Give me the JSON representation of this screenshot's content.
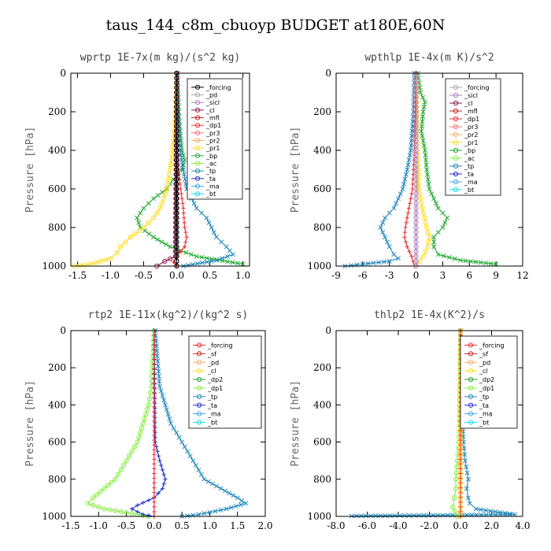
{
  "figure_title": "taus_144_c8m_cbuoyp  BUDGET at180E,60N",
  "chart_data": [
    {
      "type": "line",
      "title": "wprtp   1E-7x(m kg)/(s^2 kg)",
      "ylabel": "Pressure [hPa]",
      "xlabel": "",
      "xlim": [
        -1.6,
        1.1
      ],
      "ylim": [
        1000,
        0
      ],
      "xticks": [
        "-1.5",
        "-1.0",
        "-0.5",
        "0.0",
        "0.5",
        "1.0"
      ],
      "xtick_values": [
        -1.5,
        -1.0,
        -0.5,
        0.0,
        0.5,
        1.0
      ],
      "yticks": [
        "0",
        "200",
        "400",
        "600",
        "800",
        "1000"
      ],
      "legend": [
        "_forcing",
        "_pd",
        "_sicl",
        "_cl",
        "_mfl",
        "_dp1",
        "_pr3",
        "_pr2",
        "_pr1",
        "_bp",
        "_ac",
        "_tp",
        "_ta",
        "_ma",
        "_bt"
      ],
      "legend_colors": [
        "#000000",
        "#aaaaaa",
        "#b080c0",
        "#8b1a4a",
        "#cc2222",
        "#ee3333",
        "#ff7070",
        "#ffaa66",
        "#ffdd22",
        "#22aa33",
        "#88ee44",
        "#2288bb",
        "#2233cc",
        "#44aaee",
        "#11ddee"
      ],
      "grid": false,
      "legend_position": "top-right",
      "series": [
        {
          "color": "#22aa33",
          "marker": "x",
          "points": [
            [
              0.01,
              0
            ],
            [
              0.02,
              100
            ],
            [
              0.03,
              200
            ],
            [
              0.05,
              300
            ],
            [
              0.08,
              400
            ],
            [
              0.12,
              450
            ],
            [
              0.08,
              500
            ],
            [
              -0.05,
              550
            ],
            [
              -0.15,
              600
            ],
            [
              -0.35,
              650
            ],
            [
              -0.5,
              700
            ],
            [
              -0.6,
              750
            ],
            [
              -0.55,
              800
            ],
            [
              -0.35,
              850
            ],
            [
              -0.1,
              900
            ],
            [
              0.3,
              950
            ],
            [
              1.0,
              990
            ]
          ]
        },
        {
          "color": "#2288bb",
          "marker": "x",
          "points": [
            [
              0.01,
              0
            ],
            [
              0.02,
              200
            ],
            [
              0.05,
              400
            ],
            [
              0.1,
              500
            ],
            [
              0.15,
              600
            ],
            [
              0.3,
              700
            ],
            [
              0.45,
              750
            ],
            [
              0.6,
              850
            ],
            [
              0.75,
              900
            ],
            [
              0.85,
              940
            ],
            [
              0.6,
              970
            ],
            [
              0.1,
              1000
            ]
          ]
        },
        {
          "color": "#ffdd22",
          "marker": "o",
          "points": [
            [
              0.0,
              0
            ],
            [
              -0.02,
              200
            ],
            [
              -0.06,
              400
            ],
            [
              -0.1,
              500
            ],
            [
              -0.15,
              600
            ],
            [
              -0.25,
              700
            ],
            [
              -0.35,
              750
            ],
            [
              -0.5,
              800
            ],
            [
              -0.7,
              850
            ],
            [
              -0.85,
              900
            ],
            [
              -0.9,
              930
            ],
            [
              -1.0,
              960
            ],
            [
              -1.3,
              990
            ],
            [
              -1.55,
              1000
            ]
          ]
        },
        {
          "color": "#ee3333",
          "marker": "+",
          "points": [
            [
              0.0,
              0
            ],
            [
              0.0,
              300
            ],
            [
              0.03,
              500
            ],
            [
              0.06,
              600
            ],
            [
              0.1,
              700
            ],
            [
              0.12,
              800
            ],
            [
              0.15,
              850
            ],
            [
              0.12,
              900
            ],
            [
              0.0,
              950
            ],
            [
              -0.05,
              980
            ],
            [
              0.0,
              1000
            ]
          ]
        },
        {
          "color": "#8b1a4a",
          "marker": "o",
          "points": [
            [
              0.0,
              0
            ],
            [
              -0.02,
              950
            ],
            [
              -0.18,
              975
            ],
            [
              -0.3,
              1000
            ]
          ]
        },
        {
          "color": "#b080c0",
          "marker": "o",
          "points": [
            [
              0.0,
              0
            ],
            [
              0.0,
              1000
            ]
          ]
        },
        {
          "color": "#000000",
          "marker": "o",
          "points": [
            [
              0.0,
              0
            ],
            [
              0.0,
              1000
            ]
          ]
        }
      ]
    },
    {
      "type": "line",
      "title": "wpthlp   1E-4x(m K)/s^2",
      "ylabel": "Pressure [hPa]",
      "xlabel": "",
      "xlim": [
        -9,
        12
      ],
      "ylim": [
        1000,
        0
      ],
      "xticks": [
        "-9",
        "-6",
        "-3",
        "0",
        "3",
        "6",
        "9",
        "12"
      ],
      "xtick_values": [
        -9,
        -6,
        -3,
        0,
        3,
        6,
        9,
        12
      ],
      "yticks": [
        "0",
        "200",
        "400",
        "600",
        "800",
        "1000"
      ],
      "legend": [
        "_forcing",
        "_sicl",
        "_cl",
        "_mfl",
        "_dp1",
        "_pr3",
        "_pr2",
        "_pr1",
        "_bp",
        "_ac",
        "_tp",
        "_ta",
        "_ma",
        "_bt"
      ],
      "legend_colors": [
        "#aaaaaa",
        "#b080c0",
        "#8b1a4a",
        "#cc2222",
        "#ee3333",
        "#ff7070",
        "#ffaa66",
        "#ffdd22",
        "#22aa33",
        "#88ee44",
        "#2288bb",
        "#2233cc",
        "#44aaee",
        "#11ddee"
      ],
      "grid": false,
      "legend_position": "top-right",
      "series": [
        {
          "color": "#22aa33",
          "marker": "x",
          "points": [
            [
              0.2,
              0
            ],
            [
              0.5,
              100
            ],
            [
              1.0,
              150
            ],
            [
              0.8,
              200
            ],
            [
              0.6,
              300
            ],
            [
              1.0,
              400
            ],
            [
              1.2,
              500
            ],
            [
              1.5,
              600
            ],
            [
              2.5,
              700
            ],
            [
              3.5,
              750
            ],
            [
              3.0,
              800
            ],
            [
              2.0,
              850
            ],
            [
              2.0,
              900
            ],
            [
              2.5,
              940
            ],
            [
              5.0,
              970
            ],
            [
              9.0,
              990
            ]
          ]
        },
        {
          "color": "#2288bb",
          "marker": "x",
          "points": [
            [
              -0.2,
              0
            ],
            [
              -0.3,
              200
            ],
            [
              -0.6,
              400
            ],
            [
              -1.0,
              500
            ],
            [
              -1.5,
              600
            ],
            [
              -2.5,
              700
            ],
            [
              -3.5,
              750
            ],
            [
              -4.0,
              800
            ],
            [
              -3.5,
              850
            ],
            [
              -3.0,
              900
            ],
            [
              -2.5,
              940
            ],
            [
              -2.0,
              960
            ],
            [
              -3.0,
              975
            ],
            [
              -6.0,
              990
            ],
            [
              -8.0,
              1000
            ]
          ]
        },
        {
          "color": "#ffdd22",
          "marker": "o",
          "points": [
            [
              0.0,
              0
            ],
            [
              0.2,
              400
            ],
            [
              0.3,
              600
            ],
            [
              0.7,
              700
            ],
            [
              1.2,
              800
            ],
            [
              1.5,
              850
            ],
            [
              1.3,
              900
            ],
            [
              0.8,
              950
            ],
            [
              0.0,
              1000
            ]
          ]
        },
        {
          "color": "#ee3333",
          "marker": "+",
          "points": [
            [
              0.0,
              0
            ],
            [
              -0.2,
              400
            ],
            [
              -0.4,
              600
            ],
            [
              -0.8,
              700
            ],
            [
              -1.2,
              800
            ],
            [
              -1.3,
              850
            ],
            [
              -1.0,
              900
            ],
            [
              -0.5,
              950
            ],
            [
              -0.2,
              1000
            ]
          ]
        },
        {
          "color": "#b080c0",
          "marker": "o",
          "points": [
            [
              0.0,
              0
            ],
            [
              0.0,
              1000
            ]
          ]
        }
      ]
    },
    {
      "type": "line",
      "title": "rtp2   1E-11x(kg^2)/(kg^2 s)",
      "ylabel": "Pressure [hPa]",
      "xlabel": "",
      "xlim": [
        -1.5,
        2.0
      ],
      "ylim": [
        1000,
        0
      ],
      "xticks": [
        "-1.5",
        "-1.0",
        "-0.5",
        "0.0",
        "0.5",
        "1.0",
        "1.5",
        "2.0"
      ],
      "xtick_values": [
        -1.5,
        -1.0,
        -0.5,
        0.0,
        0.5,
        1.0,
        1.5,
        2.0
      ],
      "yticks": [
        "0",
        "200",
        "400",
        "600",
        "800",
        "1000"
      ],
      "legend": [
        "_forcing",
        "_sf",
        "_pd",
        "_cl",
        "_dp2",
        "_dp1",
        "_tp",
        "_ta",
        "_ma",
        "_bt"
      ],
      "legend_colors": [
        "#ee3333",
        "#cc2222",
        "#ffaa66",
        "#ffdd22",
        "#22aa33",
        "#88ee44",
        "#2288bb",
        "#2233cc",
        "#44aaee",
        "#11ddee"
      ],
      "grid": false,
      "legend_position": "top-right",
      "series": [
        {
          "color": "#88ee44",
          "marker": "o",
          "points": [
            [
              0.0,
              0
            ],
            [
              -0.05,
              300
            ],
            [
              -0.1,
              400
            ],
            [
              -0.2,
              500
            ],
            [
              -0.3,
              600
            ],
            [
              -0.5,
              700
            ],
            [
              -0.7,
              800
            ],
            [
              -0.9,
              850
            ],
            [
              -1.1,
              900
            ],
            [
              -1.2,
              930
            ],
            [
              -0.9,
              960
            ],
            [
              -0.5,
              980
            ],
            [
              -0.1,
              1000
            ]
          ]
        },
        {
          "color": "#2288bb",
          "marker": "x",
          "points": [
            [
              0.02,
              0
            ],
            [
              0.1,
              300
            ],
            [
              0.2,
              400
            ],
            [
              0.3,
              500
            ],
            [
              0.5,
              600
            ],
            [
              0.7,
              700
            ],
            [
              0.9,
              800
            ],
            [
              1.2,
              850
            ],
            [
              1.5,
              900
            ],
            [
              1.65,
              930
            ],
            [
              1.3,
              960
            ],
            [
              0.8,
              990
            ],
            [
              0.5,
              1000
            ]
          ]
        },
        {
          "color": "#2233cc",
          "marker": "+",
          "points": [
            [
              0.0,
              0
            ],
            [
              0.02,
              600
            ],
            [
              0.1,
              700
            ],
            [
              0.2,
              800
            ],
            [
              0.15,
              850
            ],
            [
              0.0,
              900
            ],
            [
              -0.3,
              940
            ],
            [
              -0.4,
              960
            ],
            [
              -0.2,
              990
            ],
            [
              0.0,
              1000
            ]
          ]
        },
        {
          "color": "#ee3333",
          "marker": "+",
          "points": [
            [
              0.0,
              0
            ],
            [
              0.0,
              1000
            ]
          ]
        }
      ]
    },
    {
      "type": "line",
      "title": "thlp2   1E-4x(K^2)/s",
      "ylabel": "Pressure [hPa]",
      "xlabel": "",
      "xlim": [
        -8.0,
        4.0
      ],
      "ylim": [
        1000,
        0
      ],
      "xticks": [
        "-8.0",
        "-6.0",
        "-4.0",
        "-2.0",
        "0.0",
        "2.0",
        "4.0"
      ],
      "xtick_values": [
        -8.0,
        -6.0,
        -4.0,
        -2.0,
        0.0,
        2.0,
        4.0
      ],
      "yticks": [
        "0",
        "200",
        "400",
        "600",
        "800",
        "1000"
      ],
      "legend": [
        "_forcing",
        "_sf",
        "_pd",
        "_cl",
        "_dp2",
        "_dp1",
        "_tp",
        "_ta",
        "_ma",
        "_bt"
      ],
      "legend_colors": [
        "#ee3333",
        "#cc2222",
        "#ffaa66",
        "#ffdd22",
        "#22aa33",
        "#88ee44",
        "#2288bb",
        "#2233cc",
        "#44aaee",
        "#11ddee"
      ],
      "grid": false,
      "legend_position": "top-right",
      "series": [
        {
          "color": "#2288bb",
          "marker": "x",
          "points": [
            [
              0.0,
              0
            ],
            [
              0.1,
              400
            ],
            [
              0.2,
              600
            ],
            [
              0.3,
              700
            ],
            [
              0.5,
              800
            ],
            [
              0.4,
              850
            ],
            [
              0.5,
              900
            ],
            [
              0.6,
              930
            ],
            [
              1.0,
              960
            ],
            [
              3.5,
              990
            ],
            [
              -7.0,
              998
            ]
          ]
        },
        {
          "color": "#88ee44",
          "marker": "o",
          "points": [
            [
              0.0,
              0
            ],
            [
              -0.05,
              400
            ],
            [
              -0.1,
              600
            ],
            [
              -0.2,
              700
            ],
            [
              -0.3,
              800
            ],
            [
              -0.3,
              850
            ],
            [
              -0.4,
              900
            ],
            [
              -0.5,
              950
            ],
            [
              -0.2,
              1000
            ]
          ]
        },
        {
          "color": "#ffdd22",
          "marker": "o",
          "points": [
            [
              0.0,
              0
            ],
            [
              0.0,
              1000
            ]
          ]
        },
        {
          "color": "#ee3333",
          "marker": "+",
          "points": [
            [
              0.0,
              0
            ],
            [
              0.0,
              1000
            ]
          ]
        }
      ]
    }
  ]
}
